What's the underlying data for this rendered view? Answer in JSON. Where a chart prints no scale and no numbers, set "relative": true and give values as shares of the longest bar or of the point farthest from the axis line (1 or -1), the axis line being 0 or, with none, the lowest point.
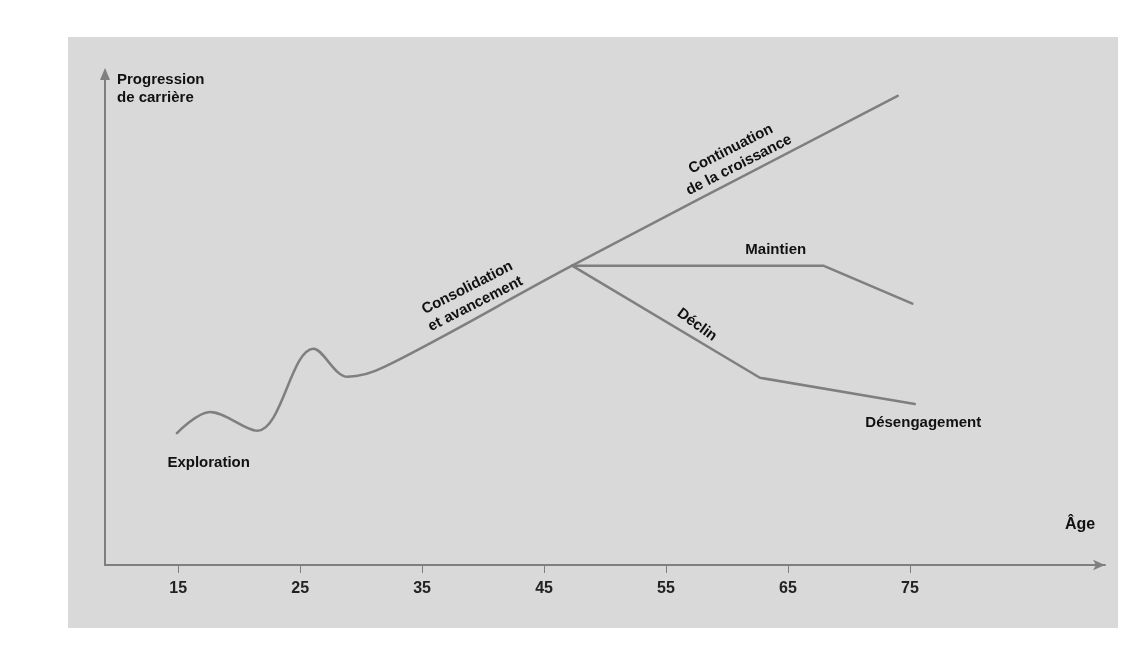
{
  "chart_data": {
    "type": "line",
    "relative": true,
    "xlabel": "Âge",
    "ylabel": "Progression\nde carrière",
    "xlim": [
      9,
      91
    ],
    "xticks": [
      15,
      25,
      35,
      45,
      55,
      65,
      75
    ],
    "marker": "none",
    "line_style": "solid",
    "grid": false,
    "series": [
      {
        "color": "#7f7f7f",
        "x": [
          14.9,
          17.6,
          21.5,
          26.1,
          28.9,
          31.9,
          47.3,
          74.0
        ],
        "values": [
          0.281,
          0.326,
          0.286,
          0.461,
          0.401,
          0.422,
          0.638,
          1.0
        ]
      },
      {
        "color": "#7f7f7f",
        "x": [
          47.3,
          67.9,
          75.2
        ],
        "values": [
          0.638,
          0.638,
          0.557
        ]
      },
      {
        "color": "#7f7f7f",
        "x": [
          47.3,
          62.7,
          75.4
        ],
        "values": [
          0.638,
          0.399,
          0.343
        ]
      }
    ],
    "annotations": [
      "Exploration",
      "Consolidation\net avancement",
      "Continuation\nde la croissance",
      "Maintien",
      "Déclin",
      "Désengagement"
    ]
  }
}
